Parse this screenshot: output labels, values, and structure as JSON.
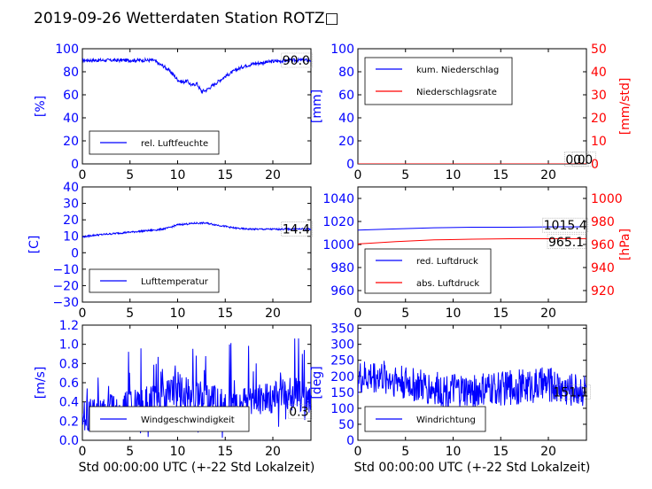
{
  "title": "2019-09-26 Wetterdaten Station ROTZ",
  "title_glyph": "□",
  "colors": {
    "left_axis": "#0000ff",
    "right_axis": "#ff0000",
    "series_blue": "#0000ff",
    "series_red": "#ff0000",
    "text": "#000000"
  },
  "chart_data": [
    {
      "id": "humidity",
      "type": "line",
      "ylabel": "[%]",
      "ylim": [
        0,
        100
      ],
      "yticks": [
        0,
        20,
        40,
        60,
        80,
        100
      ],
      "xlim": [
        0,
        24
      ],
      "xticks": [
        0,
        5,
        10,
        15,
        20
      ],
      "xlabel": "",
      "legend_loc": "lower-left",
      "series": [
        {
          "name": "rel. Luftfeuchte",
          "axis": "left",
          "color": "#0000ff",
          "x": [
            0,
            2,
            4,
            6,
            7.5,
            8,
            8.5,
            9,
            9.5,
            10,
            10.5,
            11,
            11.5,
            12,
            12.5,
            13,
            13.5,
            14,
            14.5,
            15,
            16,
            17,
            18,
            19,
            20,
            21,
            22,
            24
          ],
          "y": [
            90,
            90,
            90,
            90,
            90,
            87,
            85,
            82,
            78,
            73,
            71,
            72,
            68,
            70,
            63,
            64,
            67,
            70,
            73,
            76,
            81,
            85,
            87,
            88,
            89,
            89.5,
            90,
            90
          ],
          "noise": 1.5
        }
      ],
      "annotations": [
        {
          "text": "90.0"
        }
      ]
    },
    {
      "id": "precip",
      "type": "line",
      "ylabel": "[mm]",
      "ylim": [
        0,
        100
      ],
      "yticks": [
        0,
        20,
        40,
        60,
        80,
        100
      ],
      "y2label": "[mm/std]",
      "y2lim": [
        0,
        50
      ],
      "y2ticks": [
        0,
        10,
        20,
        30,
        40,
        50
      ],
      "xlim": [
        0,
        24
      ],
      "xticks": [
        0,
        5,
        10,
        15,
        20
      ],
      "xlabel": "",
      "legend_loc": "upper-left",
      "series": [
        {
          "name": "kum. Niederschlag",
          "axis": "left",
          "color": "#0000ff",
          "x": [
            0,
            24
          ],
          "y": [
            0,
            0
          ]
        },
        {
          "name": "Niederschlagsrate",
          "axis": "right",
          "color": "#ff0000",
          "x": [
            0,
            24
          ],
          "y": [
            0,
            0
          ]
        }
      ],
      "annotations": [
        {
          "text": "0.0"
        },
        {
          "text": "0.0"
        }
      ]
    },
    {
      "id": "temperature",
      "type": "line",
      "ylabel": "[C]",
      "ylim": [
        -30,
        40
      ],
      "yticks": [
        -30,
        -20,
        -10,
        0,
        10,
        20,
        30,
        40
      ],
      "xlim": [
        0,
        24
      ],
      "xticks": [
        0,
        5,
        10,
        15,
        20
      ],
      "xlabel": "",
      "legend_loc": "lower-left",
      "series": [
        {
          "name": "Lufttemperatur",
          "axis": "left",
          "color": "#0000ff",
          "x": [
            0,
            1,
            2,
            3,
            4,
            5,
            6,
            7,
            8,
            9,
            10,
            11,
            12,
            13,
            14,
            15,
            16,
            17,
            18,
            20,
            22,
            24
          ],
          "y": [
            9.5,
            10.5,
            11,
            11.5,
            12,
            12.5,
            13,
            13.5,
            14,
            15,
            17,
            17.5,
            18,
            18,
            17,
            16,
            15,
            14.5,
            14.3,
            14.3,
            14.4,
            14.4
          ],
          "noise": 0.5
        }
      ],
      "annotations": [
        {
          "text": "14.4"
        }
      ]
    },
    {
      "id": "pressure",
      "type": "line",
      "ylim": [
        950,
        1050
      ],
      "yticks": [
        960,
        980,
        1000,
        1020,
        1040
      ],
      "y2label": "[hPa]",
      "y2lim": [
        910,
        1010
      ],
      "y2ticks": [
        920,
        940,
        960,
        980,
        1000
      ],
      "xlim": [
        0,
        24
      ],
      "xticks": [
        0,
        5,
        10,
        15,
        20
      ],
      "xlabel": "",
      "legend_loc": "lower-left",
      "series": [
        {
          "name": "red. Luftdruck",
          "axis": "left",
          "color": "#0000ff",
          "x": [
            0,
            4,
            8,
            12,
            16,
            20,
            24
          ],
          "y": [
            1012.5,
            1013.5,
            1014.5,
            1015,
            1015,
            1015.3,
            1015.4
          ]
        },
        {
          "name": "abs. Luftdruck",
          "axis": "right",
          "color": "#ff0000",
          "x": [
            0,
            4,
            8,
            12,
            16,
            20,
            24
          ],
          "y": [
            960.5,
            962.5,
            964,
            964.6,
            965,
            965,
            965.1
          ]
        }
      ],
      "annotations": [
        {
          "text": "1015.4"
        },
        {
          "text": "965.1"
        }
      ]
    },
    {
      "id": "windspeed",
      "type": "line",
      "ylabel": "[m/s]",
      "ylim": [
        0,
        1.2
      ],
      "yticks": [
        0.0,
        0.2,
        0.4,
        0.6,
        0.8,
        1.0,
        1.2
      ],
      "xlim": [
        0,
        24
      ],
      "xticks": [
        0,
        5,
        10,
        15,
        20
      ],
      "xlabel": "Std 00:00:00 UTC (+-22 Std Lokalzeit)",
      "legend_loc": "lower-center",
      "series": [
        {
          "name": "Windgeschwindigkeit",
          "axis": "left",
          "color": "#0000ff",
          "x": [
            0,
            2,
            4,
            6,
            8,
            10,
            11,
            12,
            14,
            16,
            18,
            20,
            22,
            24
          ],
          "y": [
            0.2,
            0.25,
            0.3,
            0.3,
            0.4,
            0.5,
            0.45,
            0.4,
            0.35,
            0.3,
            0.35,
            0.4,
            0.45,
            0.35
          ],
          "noise": 0.5,
          "spiky": true
        }
      ],
      "annotations": [
        {
          "text": "0.3"
        }
      ]
    },
    {
      "id": "winddir",
      "type": "line",
      "ylabel": "[deg]",
      "ylim": [
        0,
        360
      ],
      "yticks": [
        0,
        50,
        100,
        150,
        200,
        250,
        300,
        350
      ],
      "xlim": [
        0,
        24
      ],
      "xticks": [
        0,
        5,
        10,
        15,
        20
      ],
      "xlabel": "Std 00:00:00 UTC (+-22 Std Lokalzeit)",
      "legend_loc": "lower-left",
      "series": [
        {
          "name": "Windrichtung",
          "axis": "left",
          "color": "#0000ff",
          "x": [
            0,
            2,
            4,
            6,
            8,
            10,
            12,
            14,
            16,
            18,
            20,
            22,
            24
          ],
          "y": [
            190,
            200,
            190,
            170,
            160,
            155,
            150,
            160,
            165,
            170,
            175,
            160,
            160
          ],
          "noise": 55
        }
      ],
      "annotations": [
        {
          "text": "151.1"
        }
      ]
    }
  ]
}
